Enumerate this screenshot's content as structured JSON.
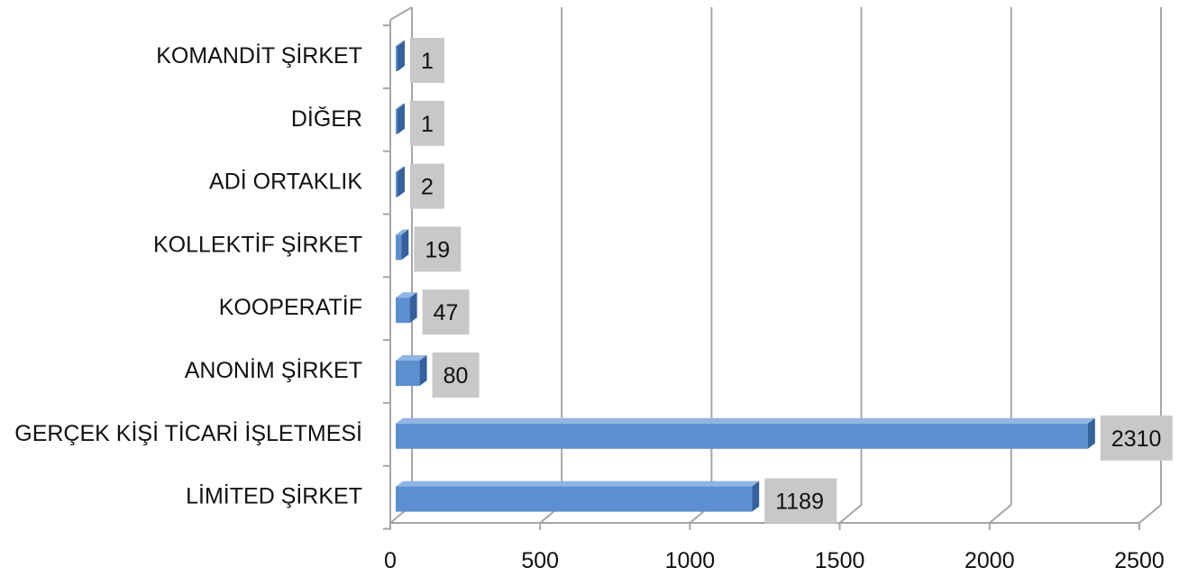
{
  "chart_data": {
    "type": "bar",
    "orientation": "horizontal",
    "style": "3d",
    "categories": [
      "KOMANDİT ŞİRKET",
      "DİĞER",
      "ADİ ORTAKLIK",
      "KOLLEKTİF ŞİRKET",
      "KOOPERATİF",
      "ANONİM ŞİRKET",
      "GERÇEK KİŞİ TİCARİ İŞLETMESİ",
      "LİMİTED ŞİRKET"
    ],
    "values": [
      1,
      1,
      2,
      19,
      47,
      80,
      2310,
      1189
    ],
    "data_labels": [
      "1",
      "1",
      "2",
      "19",
      "47",
      "80",
      "2310",
      "1189"
    ],
    "x_ticks": [
      "0",
      "500",
      "1000",
      "1500",
      "2000",
      "2500"
    ],
    "xlim": [
      0,
      2500
    ],
    "title": "",
    "xlabel": "",
    "ylabel": "",
    "grid": true,
    "legend": "none",
    "colors": {
      "bar_front": "#5b8fd0",
      "bar_top": "#8fb5e4",
      "bar_side": "#35619c",
      "grid": "#a6a6a6",
      "data_label_bg": "#c8c8c8",
      "text": "#111111"
    }
  }
}
